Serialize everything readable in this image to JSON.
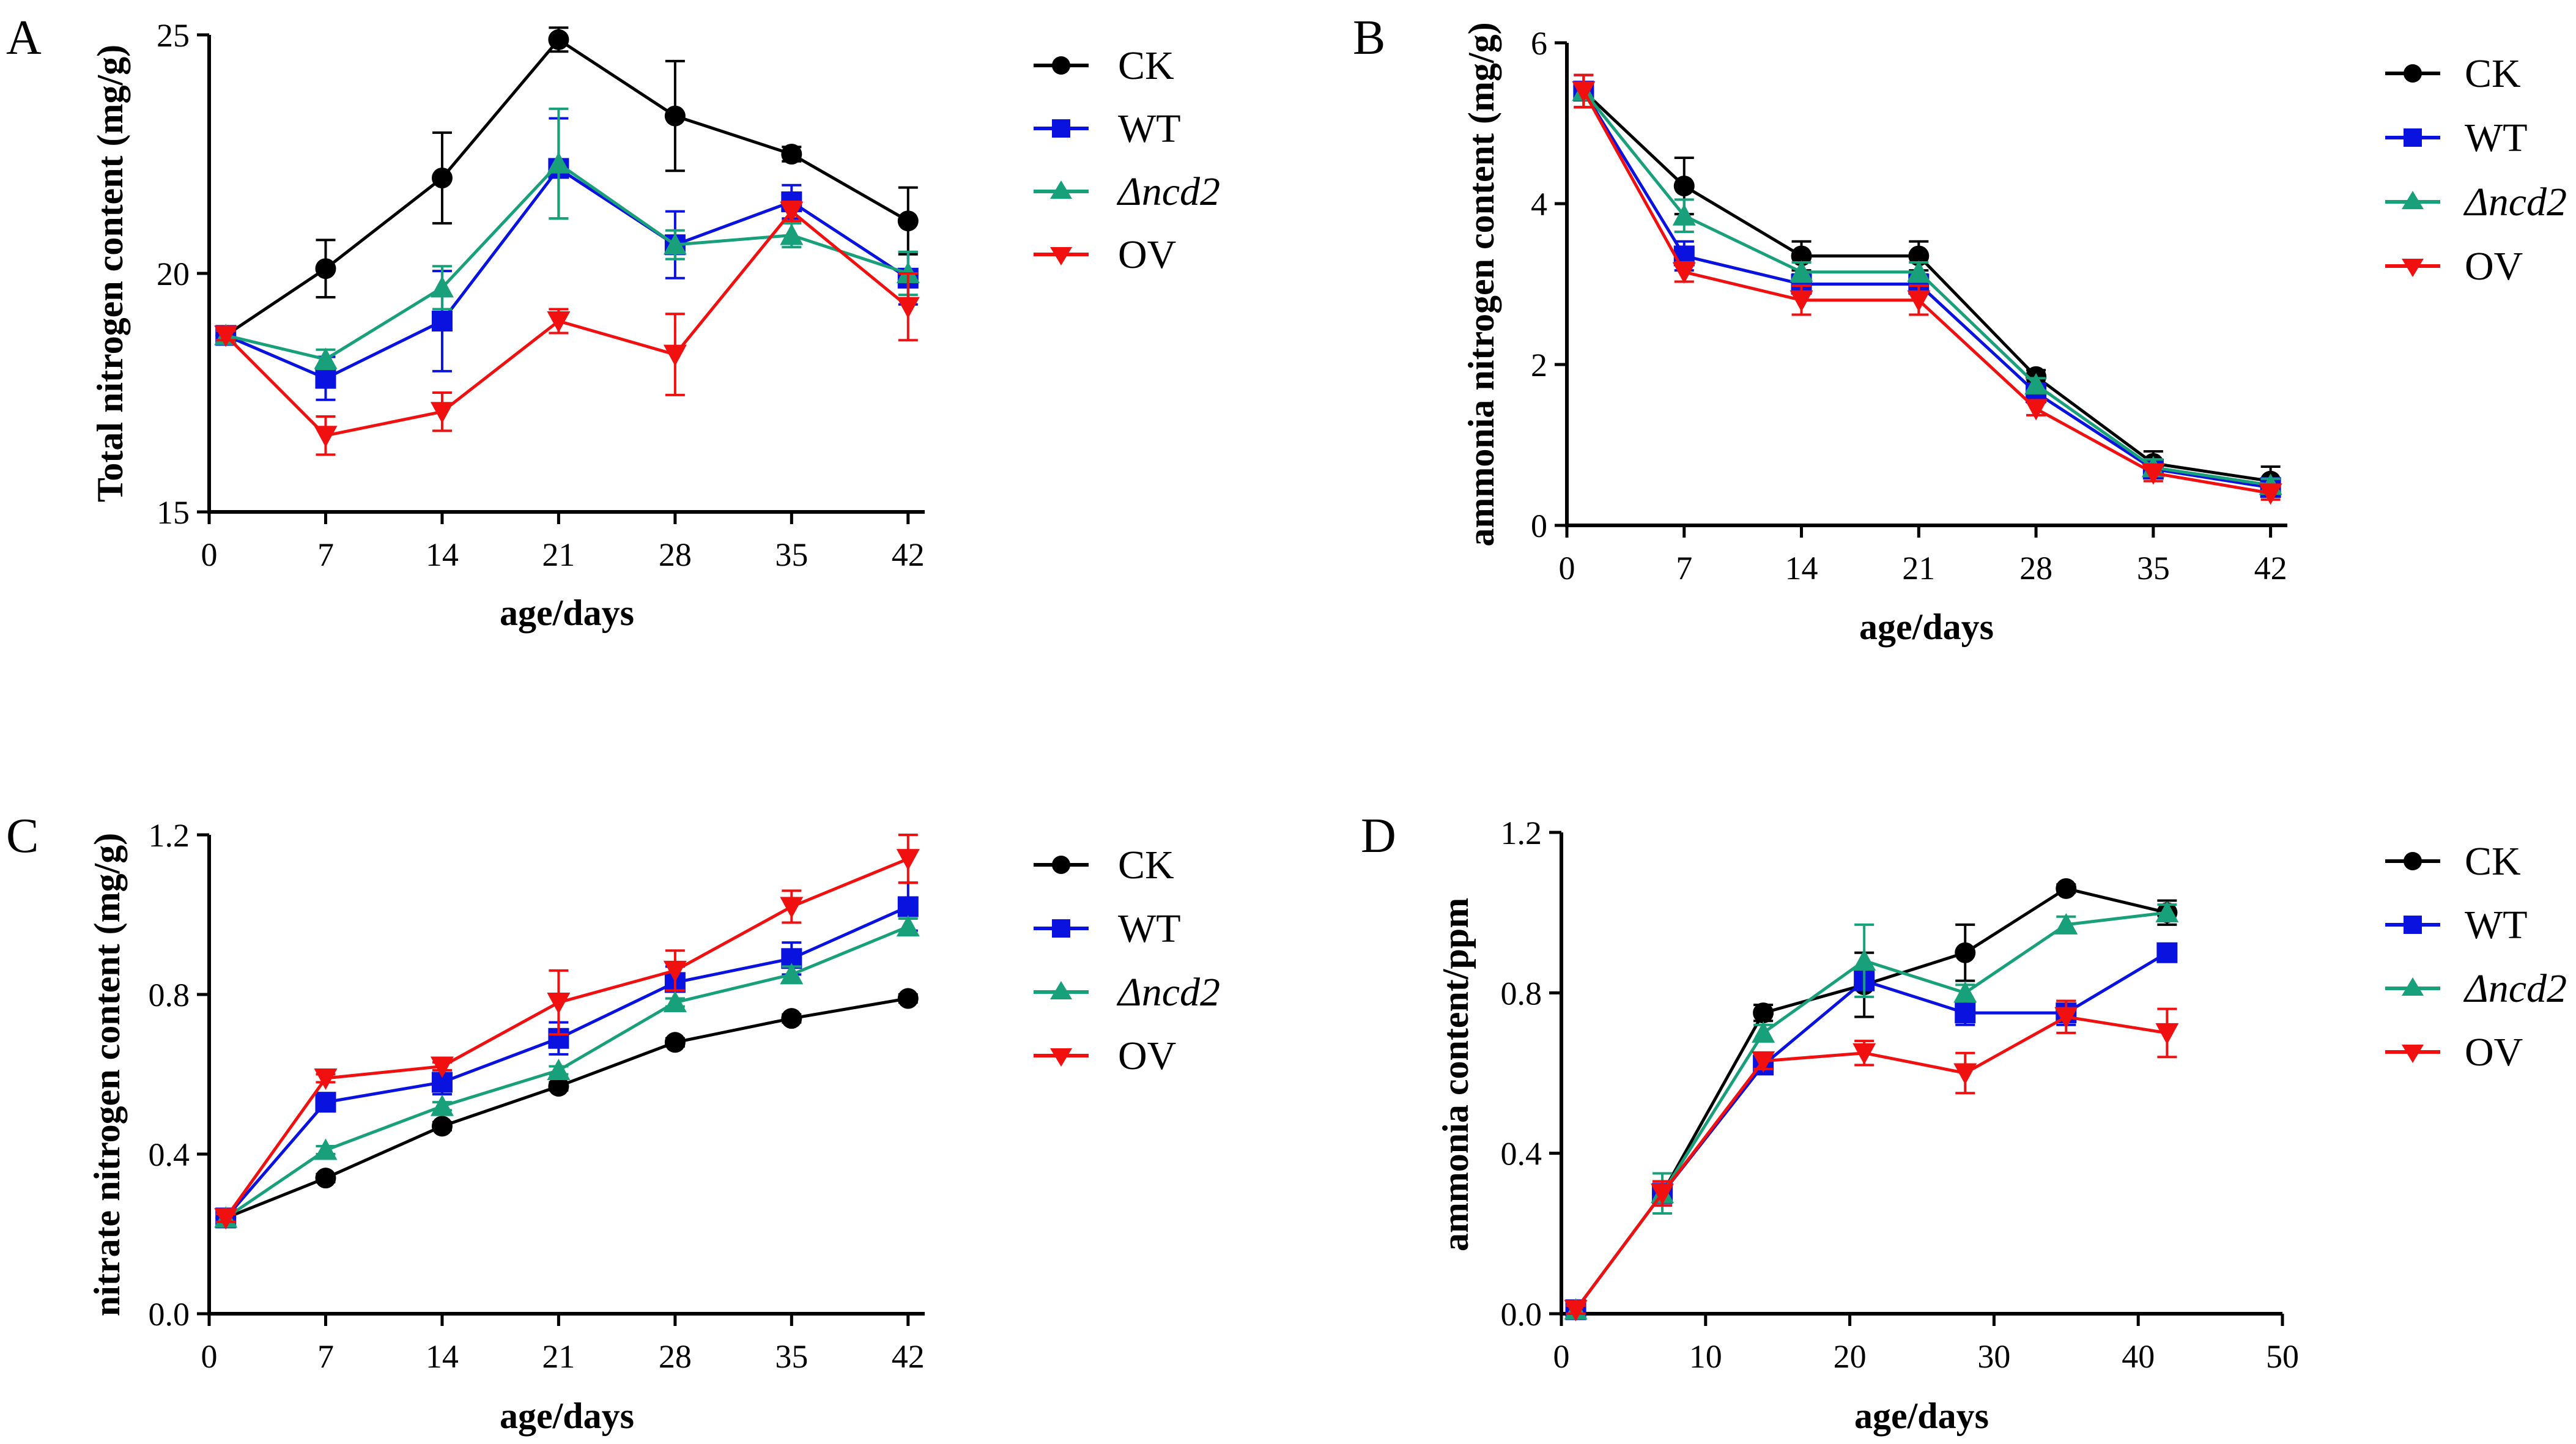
{
  "colors": {
    "CK": "#000000",
    "WT": "#0a12e0",
    "ncd2": "#18a07a",
    "OV": "#f01010"
  },
  "chart_data": [
    {
      "panel": "A",
      "type": "line",
      "title": "",
      "xlabel": "age/days",
      "ylabel": "Total nitrogen content (mg/g)",
      "xlim": [
        0,
        43
      ],
      "ylim": [
        15,
        25
      ],
      "xticks": [
        0,
        7,
        14,
        21,
        28,
        35,
        42
      ],
      "yticks": [
        15,
        20,
        25
      ],
      "yticklabels": [
        "15",
        "20",
        "25"
      ],
      "x": [
        1,
        7,
        14,
        21,
        28,
        35,
        42
      ],
      "legend": [
        "CK",
        "WT",
        "Δncd2",
        "OV"
      ],
      "series": [
        {
          "name": "CK",
          "values": [
            18.7,
            20.1,
            22.0,
            24.9,
            23.3,
            22.5,
            21.1
          ],
          "errors": [
            0.1,
            0.6,
            0.95,
            0.25,
            1.15,
            0.15,
            0.7
          ]
        },
        {
          "name": "WT",
          "values": [
            18.7,
            17.8,
            19.0,
            22.2,
            20.6,
            21.5,
            19.9
          ],
          "errors": [
            0.1,
            0.45,
            1.05,
            1.05,
            0.7,
            0.35,
            0.55
          ]
        },
        {
          "name": "Δncd2",
          "values": [
            18.7,
            18.2,
            19.7,
            22.3,
            20.6,
            20.8,
            20.0
          ],
          "errors": [
            0.1,
            0.2,
            0.45,
            1.15,
            0.3,
            0.25,
            0.45
          ]
        },
        {
          "name": "OV",
          "values": [
            18.7,
            16.6,
            17.1,
            19.0,
            18.3,
            21.3,
            19.3
          ],
          "errors": [
            0.1,
            0.4,
            0.4,
            0.25,
            0.85,
            0.2,
            0.7
          ]
        }
      ]
    },
    {
      "panel": "B",
      "type": "line",
      "title": "",
      "xlabel": "age/days",
      "ylabel": "ammonia nitrogen content (mg/g)",
      "xlim": [
        0,
        43
      ],
      "ylim": [
        0,
        6
      ],
      "xticks": [
        0,
        7,
        14,
        21,
        28,
        35,
        42
      ],
      "yticks": [
        0,
        2,
        4,
        6
      ],
      "yticklabels": [
        "0",
        "2",
        "4",
        "6"
      ],
      "x": [
        1,
        7,
        14,
        21,
        28,
        35,
        42
      ],
      "legend": [
        "CK",
        "WT",
        "Δncd2",
        "OV"
      ],
      "series": [
        {
          "name": "CK",
          "values": [
            5.4,
            4.22,
            3.35,
            3.35,
            1.85,
            0.77,
            0.55
          ],
          "errors": [
            0.2,
            0.35,
            0.18,
            0.18,
            0.08,
            0.15,
            0.18
          ]
        },
        {
          "name": "WT",
          "values": [
            5.4,
            3.35,
            3.0,
            3.0,
            1.65,
            0.7,
            0.47
          ],
          "errors": [
            0.2,
            0.18,
            0.12,
            0.12,
            0.08,
            0.1,
            0.08
          ]
        },
        {
          "name": "Δncd2",
          "values": [
            5.4,
            3.85,
            3.15,
            3.15,
            1.75,
            0.72,
            0.5
          ],
          "errors": [
            0.2,
            0.2,
            0.12,
            0.12,
            0.08,
            0.1,
            0.08
          ]
        },
        {
          "name": "OV",
          "values": [
            5.4,
            3.15,
            2.8,
            2.8,
            1.45,
            0.65,
            0.4
          ],
          "errors": [
            0.2,
            0.12,
            0.18,
            0.18,
            0.08,
            0.1,
            0.08
          ]
        }
      ]
    },
    {
      "panel": "C",
      "type": "line",
      "title": "",
      "xlabel": "age/days",
      "ylabel": "nitrate nitrogen content (mg/g)",
      "xlim": [
        0,
        43
      ],
      "ylim": [
        0,
        1.2
      ],
      "xticks": [
        0,
        7,
        14,
        21,
        28,
        35,
        42
      ],
      "yticks": [
        0,
        0.4,
        0.8,
        1.2
      ],
      "yticklabels": [
        "0.0",
        "0.4",
        "0.8",
        "1.2"
      ],
      "x": [
        1,
        7,
        14,
        21,
        28,
        35,
        42
      ],
      "legend": [
        "CK",
        "WT",
        "Δncd2",
        "OV"
      ],
      "series": [
        {
          "name": "CK",
          "values": [
            0.24,
            0.34,
            0.47,
            0.57,
            0.68,
            0.74,
            0.79
          ],
          "errors": [
            0.01,
            0.01,
            0.01,
            0.01,
            0.01,
            0.01,
            0.01
          ]
        },
        {
          "name": "WT",
          "values": [
            0.24,
            0.53,
            0.58,
            0.69,
            0.83,
            0.89,
            1.02
          ],
          "errors": [
            0.01,
            0.02,
            0.03,
            0.04,
            0.04,
            0.04,
            0.06
          ]
        },
        {
          "name": "Δncd2",
          "values": [
            0.24,
            0.41,
            0.52,
            0.61,
            0.78,
            0.85,
            0.97
          ],
          "errors": [
            0.01,
            0.01,
            0.01,
            0.01,
            0.01,
            0.02,
            0.02
          ]
        },
        {
          "name": "OV",
          "values": [
            0.24,
            0.59,
            0.62,
            0.78,
            0.86,
            1.02,
            1.14
          ],
          "errors": [
            0.01,
            0.01,
            0.01,
            0.08,
            0.05,
            0.04,
            0.06
          ]
        }
      ]
    },
    {
      "panel": "D",
      "type": "line",
      "title": "",
      "xlabel": "age/days",
      "ylabel": "ammonia content/ppm",
      "xlim": [
        0,
        50
      ],
      "ylim": [
        0,
        1.2
      ],
      "xticks": [
        0,
        10,
        20,
        30,
        40,
        50
      ],
      "yticks": [
        0,
        0.4,
        0.8,
        1.2
      ],
      "yticklabels": [
        "0.0",
        "0.4",
        "0.8",
        "1.2"
      ],
      "x": [
        1,
        7,
        14,
        21,
        28,
        35,
        42
      ],
      "legend": [
        "CK",
        "WT",
        "Δncd2",
        "OV"
      ],
      "series": [
        {
          "name": "CK",
          "values": [
            0.01,
            0.3,
            0.75,
            0.82,
            0.9,
            1.06,
            1.0
          ],
          "errors": [
            0.01,
            0.03,
            0.02,
            0.08,
            0.07,
            0.01,
            0.03
          ]
        },
        {
          "name": "WT",
          "values": [
            0.01,
            0.3,
            0.62,
            0.83,
            0.75,
            0.75,
            0.9
          ],
          "errors": [
            0.01,
            0.03,
            0.02,
            0.02,
            0.03,
            0.03,
            0.02
          ]
        },
        {
          "name": "Δncd2",
          "values": [
            0.01,
            0.3,
            0.7,
            0.88,
            0.8,
            0.97,
            1.0
          ],
          "errors": [
            0.01,
            0.05,
            0.02,
            0.09,
            0.02,
            0.02,
            0.02
          ]
        },
        {
          "name": "OV",
          "values": [
            0.01,
            0.3,
            0.63,
            0.65,
            0.6,
            0.74,
            0.7
          ],
          "errors": [
            0.01,
            0.03,
            0.02,
            0.03,
            0.05,
            0.04,
            0.06
          ]
        }
      ]
    }
  ]
}
